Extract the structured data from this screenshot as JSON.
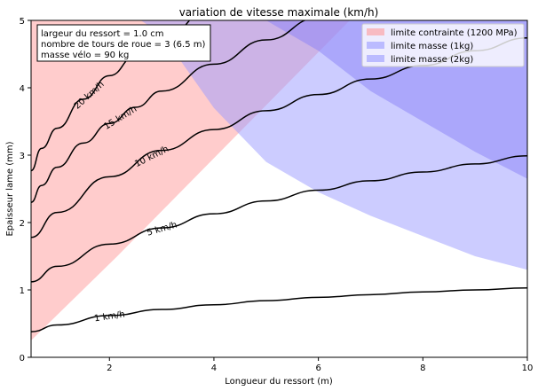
{
  "chart_data": {
    "type": "contour",
    "title": "variation de vitesse maximale (km/h)",
    "xlabel": "Longueur du ressort (m)",
    "ylabel": "Epaisseur lame (mm)",
    "xlim": [
      0.5,
      10
    ],
    "ylim": [
      0,
      5
    ],
    "xticks": [
      2,
      4,
      6,
      8,
      10
    ],
    "yticks": [
      0,
      1,
      2,
      3,
      4,
      5
    ],
    "annotation": [
      "largeur du ressort = 1.0 cm",
      "nombre de tours de roue = 3 (6.5 m)",
      "masse vélo = 90 kg"
    ],
    "legend": {
      "position": "top-right",
      "entries": [
        {
          "label": "limite contrainte (1200 MPa)",
          "color": "#ff9a9a"
        },
        {
          "label": "limite masse (1kg)",
          "color": "#9a9aff"
        },
        {
          "label": "limite masse (2kg)",
          "color": "#9a9aff"
        }
      ]
    },
    "contours": [
      {
        "label": "1 km/h",
        "x": [
          0.5,
          1,
          2,
          3,
          4,
          5,
          6,
          7,
          8,
          9,
          10
        ],
        "y": [
          0.38,
          0.48,
          0.62,
          0.71,
          0.78,
          0.84,
          0.89,
          0.93,
          0.97,
          1.0,
          1.03
        ]
      },
      {
        "label": "5 km/h",
        "x": [
          0.5,
          1,
          2,
          3,
          4,
          5,
          6,
          7,
          8,
          9,
          10
        ],
        "y": [
          1.12,
          1.35,
          1.68,
          1.92,
          2.13,
          2.32,
          2.48,
          2.62,
          2.75,
          2.87,
          2.99
        ]
      },
      {
        "label": "10 km/h",
        "x": [
          0.5,
          1,
          2,
          3,
          4,
          5,
          6,
          7,
          8,
          9,
          10
        ],
        "y": [
          1.78,
          2.15,
          2.68,
          3.07,
          3.38,
          3.66,
          3.9,
          4.13,
          4.33,
          4.55,
          4.74
        ]
      },
      {
        "label": "15 km/h",
        "x": [
          0.5,
          0.7,
          1,
          1.5,
          2,
          2.5,
          3,
          4,
          5,
          6,
          7.5
        ],
        "y": [
          2.3,
          2.55,
          2.82,
          3.18,
          3.47,
          3.71,
          3.95,
          4.35,
          4.71,
          5.04,
          5.45
        ]
      },
      {
        "label": "20 km/h",
        "x": [
          0.5,
          0.7,
          1,
          1.5,
          2,
          2.5,
          3,
          4,
          5,
          5.5
        ],
        "y": [
          2.77,
          3.1,
          3.4,
          3.83,
          4.18,
          4.47,
          4.73,
          5.21,
          5.63,
          5.84
        ]
      }
    ],
    "regions": [
      {
        "name": "limite contrainte (1200 MPa)",
        "color": "#ff9a9a",
        "opacity": 0.5,
        "x": [
          0.5,
          0.5,
          2.15,
          6.6,
          3.0
        ],
        "y": [
          5,
          0.25,
          1.5,
          5,
          5
        ]
      },
      {
        "name": "limite masse (1kg)",
        "color": "#7a6af0",
        "opacity": 0.5,
        "x": [
          5.0,
          10,
          10,
          9.0,
          8.0,
          7.0,
          6.0
        ],
        "y": [
          5,
          5,
          2.65,
          3.05,
          3.5,
          3.95,
          4.55
        ]
      },
      {
        "name": "limite masse (2kg)",
        "color": "#9a9aff",
        "opacity": 0.5,
        "x": [
          2.6,
          10,
          10,
          9.0,
          8.0,
          7.0,
          6.0,
          5.0,
          4.0,
          3.0
        ],
        "y": [
          5,
          5,
          1.3,
          1.5,
          1.8,
          2.1,
          2.45,
          2.9,
          3.7,
          4.8
        ]
      }
    ]
  }
}
